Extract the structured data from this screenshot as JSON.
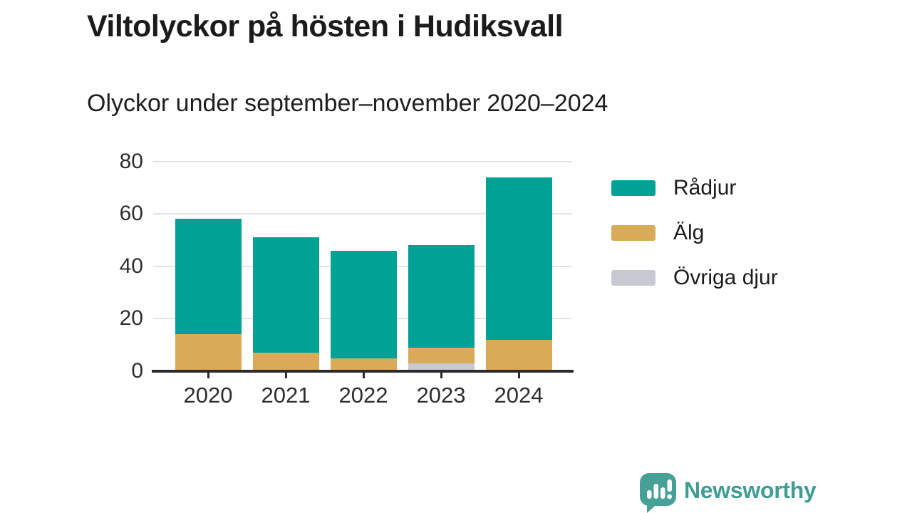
{
  "title": "Viltolyckor på hösten i Hudiksvall",
  "subtitle": "Olyckor under september–november 2020–2024",
  "chart_data": {
    "type": "bar",
    "stacked": true,
    "title": "Viltolyckor på hösten i Hudiksvall",
    "subtitle": "Olyckor under september–november 2020–2024",
    "categories": [
      "2020",
      "2021",
      "2022",
      "2023",
      "2024"
    ],
    "series": [
      {
        "name": "Rådjur",
        "color": "#00A296",
        "values": [
          44,
          44,
          41,
          39,
          62
        ]
      },
      {
        "name": "Älg",
        "color": "#D9AB58",
        "values": [
          14,
          7,
          5,
          6,
          12
        ]
      },
      {
        "name": "Övriga djur",
        "color": "#C9C9D1",
        "values": [
          0,
          0,
          0,
          3,
          0
        ]
      }
    ],
    "totals": [
      58,
      51,
      46,
      48,
      74
    ],
    "xlabel": "",
    "ylabel": "",
    "ylim": [
      0,
      80
    ],
    "yticks": [
      0,
      20,
      40,
      60,
      80
    ],
    "grid": "horizontal-light-gray",
    "legend_position": "right",
    "axis_color": "#2b2b2b",
    "gridline_color": "#e3e3e3"
  },
  "brand": {
    "name": "Newsworthy",
    "color": "#3F9D93",
    "mark_color": "#47A097",
    "mark_icon": "speech-bubble-bar-chart-exclamation"
  }
}
